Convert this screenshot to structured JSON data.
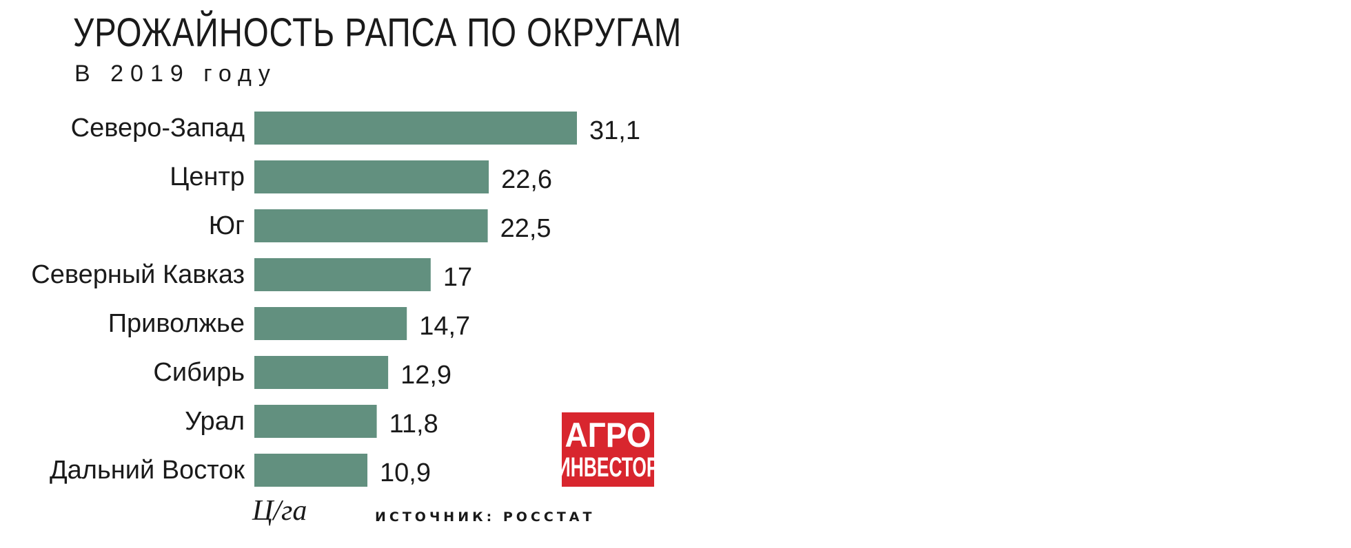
{
  "title": "УРОЖАЙНОСТЬ РАПСА ПО ОКРУГАМ",
  "subtitle": "В 2019 году",
  "unit": "Ц/га",
  "source": "ИСТОЧНИК: РОССТАТ",
  "logo": {
    "line1": "АГРО",
    "line2": "ИНВЕСТОР"
  },
  "colors": {
    "bar": "#62907f",
    "logo_background": "#d8262e"
  },
  "chart_data": {
    "type": "bar",
    "orientation": "horizontal",
    "categories": [
      "Северо-Запад",
      "Центр",
      "Юг",
      "Северный Кавказ",
      "Приволжье",
      "Сибирь",
      "Урал",
      "Дальний Восток"
    ],
    "values": [
      31.1,
      22.6,
      22.5,
      17,
      14.7,
      12.9,
      11.8,
      10.9
    ],
    "value_labels": [
      "31,1",
      "22,6",
      "22,5",
      "17",
      "14,7",
      "12,9",
      "11,8",
      "10,9"
    ],
    "title": "УРОЖАЙНОСТЬ РАПСА ПО ОКРУГАМ",
    "subtitle": "В 2019 году",
    "xlabel": "Ц/га",
    "ylabel": "",
    "xlim": [
      0,
      31.1
    ],
    "grid": false,
    "legend": "none"
  }
}
